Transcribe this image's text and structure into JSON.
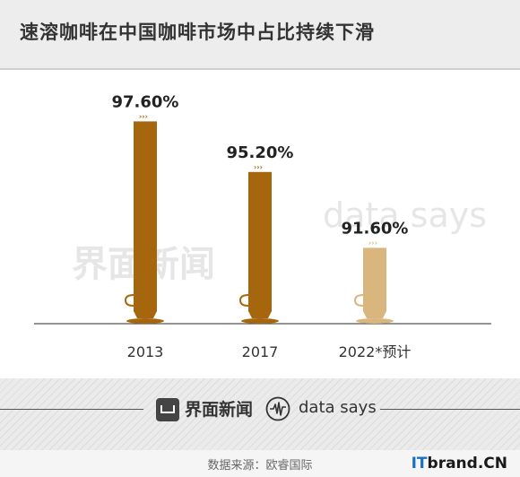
{
  "header": {
    "title": "速溶咖啡在中国咖啡市场中占比持续下滑"
  },
  "chart_data": {
    "type": "bar",
    "title": "速溶咖啡在中国咖啡市场中占比持续下滑",
    "categories": [
      "2013",
      "2017",
      "2022*预计"
    ],
    "values": [
      97.6,
      95.2,
      91.6
    ],
    "value_labels": [
      "97.60%",
      "95.20%",
      "91.60%"
    ],
    "bar_colors": [
      "#a5660e",
      "#a5660e",
      "#d8b67e"
    ],
    "unit": "%",
    "ylim": [
      88,
      98
    ],
    "grid": false,
    "legend": "none"
  },
  "watermark": {
    "brand": "界面新闻",
    "tag": "data says"
  },
  "footer": {
    "brand": "界面新闻",
    "tag": "data says",
    "source": "数据来源：欧睿国际",
    "site_prefix": "IT",
    "site_suffix": "brand.CN"
  },
  "colors": {
    "bar": "#a5660e",
    "bar_forecast": "#d8b67e",
    "baseline": "#555555",
    "background": "#ffffff"
  }
}
